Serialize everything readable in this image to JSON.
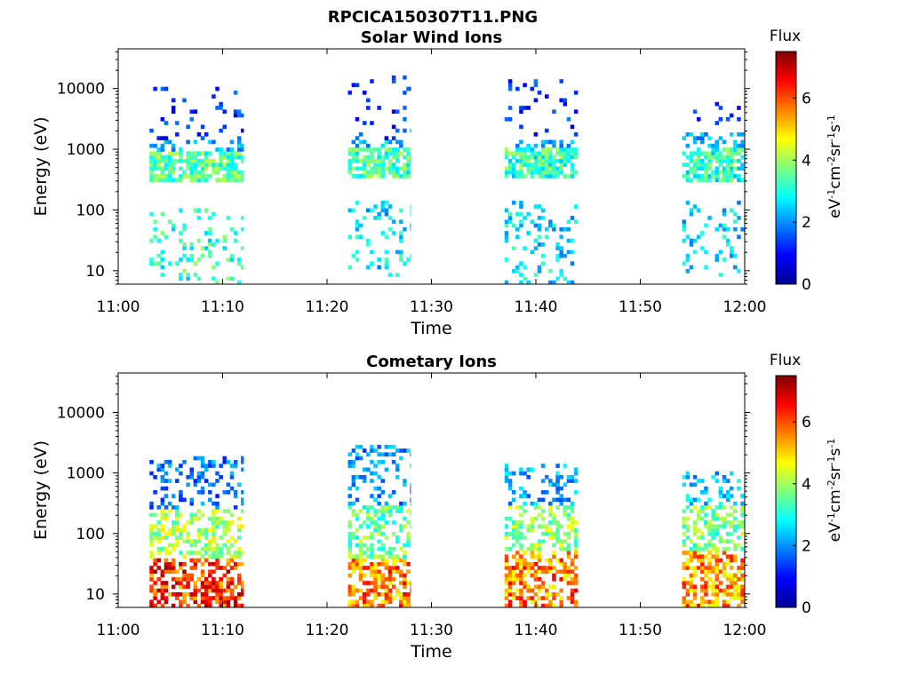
{
  "figure": {
    "title": "RPCICA150307T11.PNG"
  },
  "colors": {
    "colormap": "jet",
    "background": "#ffffff",
    "axes": "#000000"
  },
  "chart_data": [
    {
      "type": "heatmap",
      "title": "Solar Wind Ions",
      "xlabel": "Time",
      "ylabel": "Energy (eV)",
      "x_tick_labels": [
        "11:00",
        "11:10",
        "11:20",
        "11:30",
        "11:40",
        "11:50",
        "12:00"
      ],
      "x_range": [
        "11:00",
        "12:00"
      ],
      "y_scale": "log",
      "y_tick_labels": [
        "10",
        "100",
        "1000",
        "10000"
      ],
      "y_range": [
        6,
        45000
      ],
      "colorbar": {
        "title": "Flux",
        "unit_label": "eV-1cm-2sr-1s-1",
        "tick_labels": [
          "0",
          "2",
          "4",
          "6"
        ],
        "range": [
          0,
          7.5
        ]
      },
      "bursts": [
        {
          "start": "11:03",
          "end": "11:12",
          "band_eV": [
            300,
            900
          ],
          "band_flux": 3.5,
          "high_eV": [
            1500,
            10000
          ],
          "low_eV": [
            5,
            100
          ],
          "low_flux": 3.2
        },
        {
          "start": "11:22",
          "end": "11:28",
          "band_eV": [
            350,
            1000
          ],
          "band_flux": 3.4,
          "high_eV": [
            1500,
            16000
          ],
          "low_eV": [
            8,
            150
          ],
          "low_flux": 2.6
        },
        {
          "start": "11:37",
          "end": "11:44",
          "band_eV": [
            350,
            1000
          ],
          "band_flux": 3.2,
          "high_eV": [
            1500,
            14000
          ],
          "low_eV": [
            6,
            150
          ],
          "low_flux": 2.6
        },
        {
          "start": "11:54",
          "end": "12:00",
          "band_eV": [
            300,
            1000
          ],
          "band_flux": 3.2,
          "high_eV": [
            2000,
            6000
          ],
          "low_eV": [
            8,
            150
          ],
          "low_flux": 2.6
        }
      ]
    },
    {
      "type": "heatmap",
      "title": "Cometary Ions",
      "xlabel": "Time",
      "ylabel": "Energy (eV)",
      "x_tick_labels": [
        "11:00",
        "11:10",
        "11:20",
        "11:30",
        "11:40",
        "11:50",
        "12:00"
      ],
      "x_range": [
        "11:00",
        "12:00"
      ],
      "y_scale": "log",
      "y_tick_labels": [
        "10",
        "100",
        "1000",
        "10000"
      ],
      "y_range": [
        6,
        45000
      ],
      "colorbar": {
        "title": "Flux",
        "unit_label": "eV-1cm-2sr-1s-1",
        "tick_labels": [
          "0",
          "2",
          "4",
          "6"
        ],
        "range": [
          0,
          7.5
        ]
      },
      "bursts": [
        {
          "start": "11:03",
          "end": "11:12",
          "peak_eV": [
            6,
            40
          ],
          "peak_flux": 6.2,
          "mid_eV": [
            40,
            250
          ],
          "mid_flux": 4.0,
          "top_eV": [
            250,
            2000
          ],
          "top_flux": 1.8
        },
        {
          "start": "11:22",
          "end": "11:28",
          "peak_eV": [
            6,
            40
          ],
          "peak_flux": 5.6,
          "mid_eV": [
            40,
            300
          ],
          "mid_flux": 3.6,
          "top_eV": [
            300,
            3000
          ],
          "top_flux": 2.0
        },
        {
          "start": "11:37",
          "end": "11:44",
          "peak_eV": [
            6,
            50
          ],
          "peak_flux": 5.6,
          "mid_eV": [
            50,
            300
          ],
          "mid_flux": 3.8,
          "top_eV": [
            300,
            1500
          ],
          "top_flux": 2.2
        },
        {
          "start": "11:54",
          "end": "12:00",
          "peak_eV": [
            6,
            50
          ],
          "peak_flux": 5.4,
          "mid_eV": [
            50,
            300
          ],
          "mid_flux": 3.6,
          "top_eV": [
            300,
            1000
          ],
          "top_flux": 2.4
        }
      ]
    }
  ]
}
